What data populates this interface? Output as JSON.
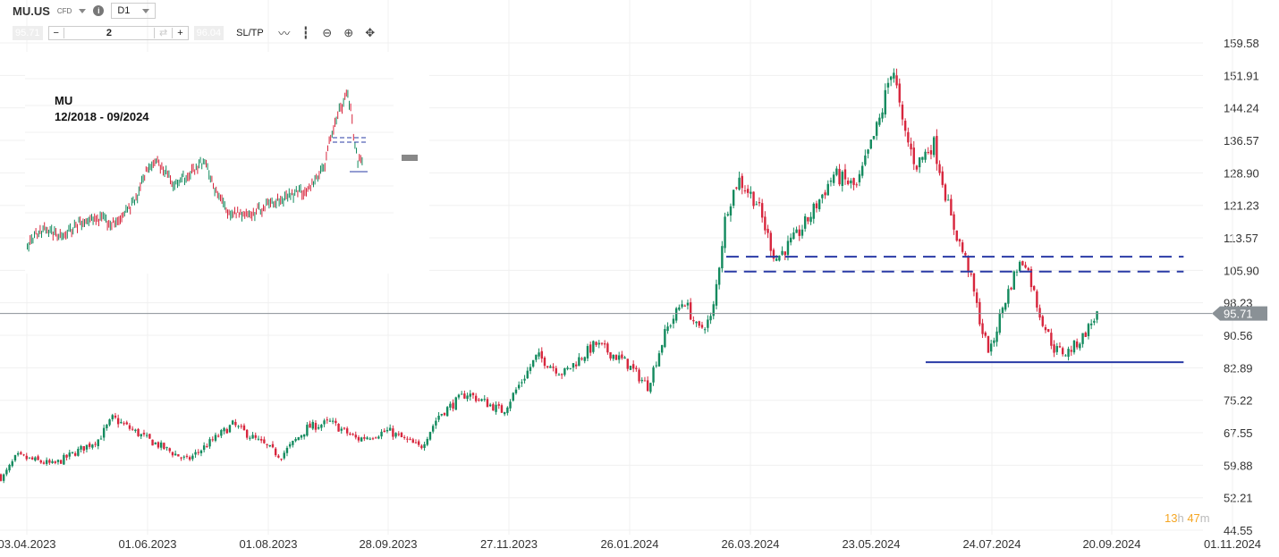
{
  "toolbar": {
    "symbol": "MU.US",
    "instrument_type": "CFD",
    "info_icon": "info-icon",
    "timeframe": "D1",
    "bid": "95.71",
    "quantity": "2",
    "ask": "96.04",
    "sltp_label": "SL/TP",
    "minus": "−",
    "plus": "+",
    "icons": [
      "line-chart-icon",
      "candlestick-icon",
      "zoom-out-icon",
      "zoom-in-icon",
      "move-icon"
    ]
  },
  "inset": {
    "title": "MU",
    "subtitle": "12/2018 - 09/2024"
  },
  "timer": {
    "hours": "13",
    "h": "h",
    "minutes": "47",
    "m": "m"
  },
  "colors": {
    "up": "#138a5e",
    "down": "#d7263d",
    "level_line": "#2a3ba6",
    "price_line": "#8a9196"
  },
  "chart_data": {
    "type": "candlestick",
    "ylim": [
      44.55,
      159.58
    ],
    "y_ticks": [
      "159.58",
      "151.91",
      "144.24",
      "136.57",
      "128.90",
      "121.23",
      "113.57",
      "105.90",
      "98.23",
      "90.56",
      "82.89",
      "75.22",
      "67.55",
      "59.88",
      "52.21",
      "44.55"
    ],
    "x_ticks": [
      "03.04.2023",
      "01.06.2023",
      "01.08.2023",
      "28.09.2023",
      "27.11.2023",
      "26.01.2024",
      "26.03.2024",
      "23.05.2024",
      "24.07.2024",
      "20.09.2024",
      "01.11.2024"
    ],
    "current_price": "95.71",
    "levels": [
      {
        "price": 109.1,
        "style": "dashed",
        "from": "14.03.2024",
        "to": "15.10.2024"
      },
      {
        "price": 105.6,
        "style": "dashed",
        "from": "13.03.2024",
        "to": "15.10.2024"
      },
      {
        "price": 84.2,
        "style": "solid",
        "from": "20.06.2024",
        "to": "15.10.2024"
      }
    ],
    "close_path": [
      [
        "20.03.2023",
        57.5
      ],
      [
        "22.03.2023",
        56.8
      ],
      [
        "29.03.2023",
        62
      ],
      [
        "16.04.2023",
        60
      ],
      [
        "08.05.2023",
        66
      ],
      [
        "15.05.2023",
        71
      ],
      [
        "01.06.2023",
        66
      ],
      [
        "21.06.2023",
        61
      ],
      [
        "14.07.2023",
        69.5
      ],
      [
        "01.08.2023",
        64
      ],
      [
        "07.08.2023",
        62
      ],
      [
        "20.08.2023",
        68.8
      ],
      [
        "31.08.2023",
        70
      ],
      [
        "13.09.2023",
        66
      ],
      [
        "28.09.2023",
        68
      ],
      [
        "14.10.2023",
        64
      ],
      [
        "23.10.2023",
        71.6
      ],
      [
        "06.11.2023",
        76.9
      ],
      [
        "24.11.2023",
        72.6
      ],
      [
        "11.12.2023",
        85.7
      ],
      [
        "24.12.2023",
        81.5
      ],
      [
        "09.01.2024",
        88.5
      ],
      [
        "24.01.2024",
        84.2
      ],
      [
        "04.02.2024",
        78.5
      ],
      [
        "13.02.2024",
        91.6
      ],
      [
        "22.02.2024",
        99
      ],
      [
        "29.02.2024",
        91.6
      ],
      [
        "07.03.2024",
        94.8
      ],
      [
        "14.03.2024",
        120
      ],
      [
        "20.03.2024",
        127.5
      ],
      [
        "29.03.2024",
        122
      ],
      [
        "07.04.2024",
        108.5
      ],
      [
        "17.04.2024",
        113.8
      ],
      [
        "24.04.2024",
        119
      ],
      [
        "05.05.2024",
        128.5
      ],
      [
        "16.05.2024",
        125.4
      ],
      [
        "28.05.2024",
        142.3
      ],
      [
        "03.06.2024",
        155
      ],
      [
        "08.06.2024",
        140
      ],
      [
        "15.06.2024",
        130.7
      ],
      [
        "24.06.2024",
        136
      ],
      [
        "28.06.2024",
        128.5
      ],
      [
        "03.07.2024",
        118
      ],
      [
        "12.07.2024",
        106.4
      ],
      [
        "19.07.2024",
        91.6
      ],
      [
        "23.07.2024",
        86.3
      ],
      [
        "29.07.2024",
        96.9
      ],
      [
        "05.08.2024",
        106.4
      ],
      [
        "09.08.2024",
        108.5
      ],
      [
        "16.08.2024",
        95.8
      ],
      [
        "23.08.2024",
        87.4
      ],
      [
        "29.08.2024",
        86.3
      ],
      [
        "05.09.2024",
        89.5
      ],
      [
        "13.09.2024",
        95.71
      ]
    ]
  }
}
